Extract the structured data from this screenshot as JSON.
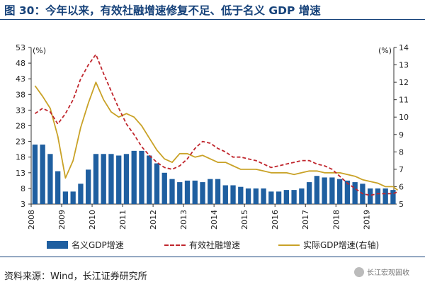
{
  "title": "图 30：今年以来，有效社融增速修复不足、低于名义 GDP 增速",
  "source": "资料来源：Wind，长江证券研究所",
  "watermark": "长江宏观固收",
  "colors": {
    "bar": "#1f5fa0",
    "tsf": "#c0262d",
    "gdp": "#c9a227",
    "title": "#16427a"
  },
  "chart_data": {
    "type": "bar",
    "left_axis": {
      "unit": "(%)",
      "ylim": [
        3,
        53
      ],
      "ticks": [
        3,
        8,
        13,
        18,
        23,
        28,
        33,
        38,
        43,
        48,
        53
      ]
    },
    "right_axis": {
      "unit": "(%)",
      "ylim": [
        5,
        14
      ],
      "ticks": [
        5,
        6,
        7,
        8,
        9,
        10,
        11,
        12,
        13,
        14
      ]
    },
    "x_axis": {
      "ticks": [
        "2008",
        "2009",
        "2010",
        "2011",
        "2012",
        "2013",
        "2014",
        "2015",
        "2016",
        "2017",
        "2018",
        "2019"
      ],
      "range": [
        2008.0,
        2019.9
      ]
    },
    "legend": {
      "position": "bottom"
    },
    "series": [
      {
        "name": "名义GDP增速",
        "type": "bar",
        "axis": "left",
        "x": [
          2008.0,
          2008.25,
          2008.5,
          2008.75,
          2009.0,
          2009.25,
          2009.5,
          2009.75,
          2010.0,
          2010.25,
          2010.5,
          2010.75,
          2011.0,
          2011.25,
          2011.5,
          2011.75,
          2012.0,
          2012.25,
          2012.5,
          2012.75,
          2013.0,
          2013.25,
          2013.5,
          2013.75,
          2014.0,
          2014.25,
          2014.5,
          2014.75,
          2015.0,
          2015.25,
          2015.5,
          2015.75,
          2016.0,
          2016.25,
          2016.5,
          2016.75,
          2017.0,
          2017.25,
          2017.5,
          2017.75,
          2018.0,
          2018.25,
          2018.5,
          2018.75,
          2019.0,
          2019.25,
          2019.5,
          2019.75
        ],
        "values": [
          22,
          22,
          19,
          13.5,
          7,
          7,
          9.5,
          14,
          19,
          19,
          19,
          18.5,
          19,
          20,
          20,
          18.5,
          16,
          13,
          11,
          10,
          10.5,
          10.5,
          10,
          11,
          11,
          9,
          9,
          8.5,
          8,
          8,
          8,
          7,
          7,
          7.5,
          7.5,
          8,
          10,
          12,
          11.5,
          11.5,
          11,
          10.5,
          10,
          9.5,
          8,
          8,
          8,
          7.5
        ]
      },
      {
        "name": "有效社融增速",
        "type": "line",
        "axis": "right",
        "x": [
          2008.0,
          2008.25,
          2008.5,
          2008.75,
          2009.0,
          2009.25,
          2009.5,
          2009.75,
          2010.0,
          2010.25,
          2010.5,
          2010.75,
          2011.0,
          2011.25,
          2011.5,
          2011.75,
          2012.0,
          2012.25,
          2012.5,
          2012.75,
          2013.0,
          2013.25,
          2013.5,
          2013.75,
          2014.0,
          2014.25,
          2014.5,
          2014.75,
          2015.0,
          2015.25,
          2015.5,
          2015.75,
          2016.0,
          2016.25,
          2016.5,
          2016.75,
          2017.0,
          2017.25,
          2017.5,
          2017.75,
          2018.0,
          2018.25,
          2018.5,
          2018.75,
          2019.0,
          2019.25,
          2019.5,
          2019.75,
          2019.9
        ],
        "values": [
          10.2,
          10.5,
          10.3,
          9.6,
          10.2,
          11.0,
          12.2,
          13.0,
          13.6,
          12.5,
          11.5,
          10.5,
          9.6,
          9.0,
          8.3,
          7.8,
          7.4,
          7.1,
          7.0,
          7.2,
          7.6,
          8.2,
          8.6,
          8.5,
          8.2,
          8.0,
          7.7,
          7.7,
          7.6,
          7.5,
          7.3,
          7.1,
          7.2,
          7.3,
          7.4,
          7.5,
          7.5,
          7.3,
          7.2,
          7.0,
          6.6,
          6.2,
          5.9,
          5.6,
          5.5,
          5.6,
          5.6,
          5.6,
          5.7
        ]
      },
      {
        "name": "实际GDP增速(右轴)",
        "type": "line",
        "axis": "right",
        "x": [
          2008.0,
          2008.25,
          2008.5,
          2008.75,
          2009.0,
          2009.25,
          2009.5,
          2009.75,
          2010.0,
          2010.25,
          2010.5,
          2010.75,
          2011.0,
          2011.25,
          2011.5,
          2011.75,
          2012.0,
          2012.25,
          2012.5,
          2012.75,
          2013.0,
          2013.25,
          2013.5,
          2013.75,
          2014.0,
          2014.25,
          2014.5,
          2014.75,
          2015.0,
          2015.25,
          2015.5,
          2015.75,
          2016.0,
          2016.25,
          2016.5,
          2016.75,
          2017.0,
          2017.25,
          2017.5,
          2017.75,
          2018.0,
          2018.25,
          2018.5,
          2018.75,
          2019.0,
          2019.25,
          2019.5,
          2019.75,
          2019.9
        ],
        "values": [
          11.8,
          11.2,
          10.5,
          8.9,
          6.5,
          7.5,
          9.4,
          10.8,
          12.0,
          11.0,
          10.3,
          10.0,
          10.2,
          10.0,
          9.5,
          8.8,
          8.1,
          7.6,
          7.4,
          7.9,
          7.9,
          7.7,
          7.8,
          7.6,
          7.4,
          7.4,
          7.2,
          7.0,
          7.0,
          7.0,
          6.9,
          6.8,
          6.8,
          6.8,
          6.7,
          6.8,
          6.9,
          6.9,
          6.8,
          6.8,
          6.8,
          6.7,
          6.6,
          6.4,
          6.3,
          6.2,
          6.0,
          6.0,
          5.8
        ]
      }
    ]
  }
}
